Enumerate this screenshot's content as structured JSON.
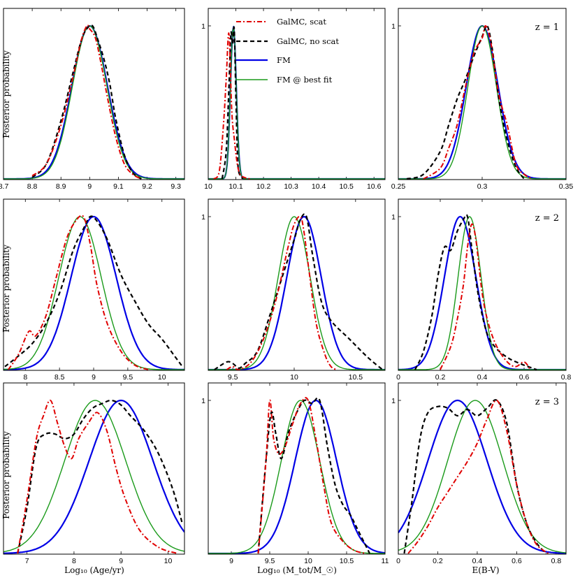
{
  "chart_data": {
    "type": "line",
    "ylabel": "Posterior probability",
    "xlabels": [
      "Log₁₀ (Age/yr)",
      "Log₁₀ (M_tot/M_☉)",
      "E(B-V)"
    ],
    "row_labels": [
      "z = 1",
      "z = 2",
      "z = 3"
    ],
    "peak_label": "1",
    "colors": {
      "galmc_scat": "#e00000",
      "galmc_noscat": "#000000",
      "fm": "#0000e6",
      "fm_best": "#1a9a1a"
    },
    "legend": [
      {
        "key": "galmc_scat",
        "label": "GalMC, scat",
        "style": "dashdot"
      },
      {
        "key": "galmc_noscat",
        "label": "GalMC, no scat",
        "style": "dashed"
      },
      {
        "key": "fm",
        "label": "FM",
        "style": "solid-thick"
      },
      {
        "key": "fm_best",
        "label": "FM @ best fit",
        "style": "solid"
      }
    ],
    "panels": [
      {
        "row": 0,
        "col": 0,
        "xlim": [
          8.7,
          9.33
        ],
        "xticks": [
          8.7,
          8.8,
          8.9,
          9.0,
          9.1,
          9.2,
          9.3
        ],
        "xticklabels": [
          "8.7",
          "8.8",
          "8.9",
          "9",
          "9.1",
          "9.2",
          "9.3"
        ],
        "show_one": false,
        "curves": {
          "galmc_scat": {
            "x": [
              8.8,
              8.85,
              8.9,
              8.94,
              8.97,
              8.99,
              9.0,
              9.02,
              9.04,
              9.06,
              9.09,
              9.12,
              9.15,
              9.18
            ],
            "y": [
              0.02,
              0.1,
              0.35,
              0.65,
              0.9,
              1.0,
              0.98,
              0.92,
              0.75,
              0.55,
              0.28,
              0.1,
              0.03,
              0.0
            ]
          },
          "galmc_noscat": {
            "x": [
              8.8,
              8.85,
              8.9,
              8.94,
              8.97,
              8.99,
              9.01,
              9.03,
              9.05,
              9.07,
              9.09,
              9.12,
              9.15,
              9.18
            ],
            "y": [
              0.01,
              0.1,
              0.38,
              0.68,
              0.9,
              0.98,
              1.0,
              0.9,
              0.78,
              0.62,
              0.4,
              0.16,
              0.04,
              0.0
            ]
          },
          "fm": {
            "gauss": [
              9.0,
              0.062
            ]
          },
          "fm_best": {
            "gauss": [
              9.0,
              0.06
            ]
          }
        }
      },
      {
        "row": 0,
        "col": 1,
        "xlim": [
          10.0,
          10.64
        ],
        "xticks": [
          10.0,
          10.1,
          10.2,
          10.3,
          10.4,
          10.5,
          10.6
        ],
        "xticklabels": [
          "10",
          "10.1",
          "10.2",
          "10.3",
          "10.4",
          "10.5",
          "10.6"
        ],
        "show_one": true,
        "curves": {
          "galmc_scat": {
            "x": [
              10.02,
              10.04,
              10.055,
              10.065,
              10.075,
              10.085,
              10.095,
              10.105,
              10.115,
              10.13,
              10.15
            ],
            "y": [
              0.0,
              0.05,
              0.35,
              0.65,
              0.95,
              0.45,
              0.25,
              0.1,
              0.03,
              0.01,
              0.0
            ]
          },
          "galmc_noscat": {
            "x": [
              10.05,
              10.065,
              10.075,
              10.082,
              10.088,
              10.094,
              10.1,
              10.105,
              10.11,
              10.125
            ],
            "y": [
              0.0,
              0.18,
              0.6,
              0.95,
              0.88,
              0.98,
              0.55,
              0.2,
              0.05,
              0.0
            ]
          },
          "fm": {
            "gauss": [
              10.091,
              0.0105
            ]
          },
          "fm_best": {
            "gauss": [
              10.091,
              0.0105
            ]
          }
        }
      },
      {
        "row": 0,
        "col": 2,
        "xlim": [
          0.25,
          0.35
        ],
        "xticks": [
          0.25,
          0.3,
          0.35
        ],
        "xticklabels": [
          "0.25",
          "0.3",
          "0.35"
        ],
        "show_one": true,
        "zlabel": 0,
        "curves": {
          "galmc_scat": {
            "x": [
              0.265,
              0.275,
              0.28,
              0.285,
              0.29,
              0.295,
              0.3,
              0.302,
              0.305,
              0.31,
              0.315,
              0.32,
              0.325,
              0.33
            ],
            "y": [
              0.0,
              0.07,
              0.2,
              0.35,
              0.6,
              0.82,
              0.92,
              1.0,
              0.9,
              0.55,
              0.35,
              0.1,
              0.03,
              0.0
            ]
          },
          "galmc_noscat": {
            "x": [
              0.255,
              0.265,
              0.275,
              0.28,
              0.285,
              0.29,
              0.295,
              0.3,
              0.303,
              0.306,
              0.31,
              0.315,
              0.32,
              0.325
            ],
            "y": [
              0.0,
              0.03,
              0.18,
              0.35,
              0.52,
              0.65,
              0.8,
              0.93,
              1.0,
              0.85,
              0.52,
              0.25,
              0.08,
              0.0
            ]
          },
          "fm": {
            "gauss": [
              0.3,
              0.0095
            ]
          },
          "fm_best": {
            "gauss": [
              0.3,
              0.0085
            ]
          }
        }
      },
      {
        "row": 1,
        "col": 0,
        "xlim": [
          7.68,
          10.33
        ],
        "xticks": [
          8.0,
          8.5,
          9.0,
          9.5,
          10.0
        ],
        "xticklabels": [
          "8",
          "8.5",
          "9",
          "9.5",
          "10"
        ],
        "show_one": false,
        "curves": {
          "galmc_scat": {
            "x": [
              7.75,
              7.9,
              8.05,
              8.15,
              8.3,
              8.45,
              8.6,
              8.72,
              8.85,
              8.95,
              9.05,
              9.2,
              9.4,
              9.6,
              9.8
            ],
            "y": [
              0.0,
              0.1,
              0.25,
              0.22,
              0.35,
              0.6,
              0.85,
              0.96,
              1.0,
              0.82,
              0.55,
              0.3,
              0.12,
              0.03,
              0.0
            ]
          },
          "galmc_noscat": {
            "x": [
              7.7,
              7.9,
              8.1,
              8.3,
              8.5,
              8.7,
              8.85,
              8.95,
              9.05,
              9.2,
              9.4,
              9.6,
              9.8,
              10.0,
              10.2,
              10.3
            ],
            "y": [
              0.02,
              0.09,
              0.17,
              0.3,
              0.5,
              0.78,
              0.92,
              1.0,
              0.97,
              0.85,
              0.62,
              0.45,
              0.3,
              0.2,
              0.08,
              0.02
            ]
          },
          "fm": {
            "gauss": [
              9.0,
              0.33
            ]
          },
          "fm_best": {
            "gauss": [
              8.8,
              0.31
            ]
          }
        }
      },
      {
        "row": 1,
        "col": 1,
        "xlim": [
          9.3,
          10.74
        ],
        "xticks": [
          9.5,
          10.0,
          10.5
        ],
        "xticklabels": [
          "9.5",
          "10",
          "10.5"
        ],
        "show_one": true,
        "curves": {
          "galmc_scat": {
            "x": [
              9.45,
              9.5,
              9.55,
              9.65,
              9.75,
              9.85,
              9.95,
              10.0,
              10.05,
              10.08,
              10.12,
              10.18,
              10.25,
              10.3,
              10.35
            ],
            "y": [
              0.0,
              0.02,
              0.0,
              0.05,
              0.2,
              0.45,
              0.8,
              0.95,
              1.0,
              0.9,
              0.65,
              0.3,
              0.1,
              0.02,
              0.0
            ]
          },
          "galmc_noscat": {
            "x": [
              9.35,
              9.45,
              9.5,
              9.55,
              9.6,
              9.7,
              9.8,
              9.9,
              10.0,
              10.05,
              10.1,
              10.15,
              10.22,
              10.3,
              10.45,
              10.6,
              10.72
            ],
            "y": [
              0.0,
              0.05,
              0.04,
              0.01,
              0.04,
              0.12,
              0.35,
              0.6,
              0.85,
              0.98,
              1.0,
              0.75,
              0.45,
              0.32,
              0.2,
              0.08,
              0.0
            ]
          },
          "fm": {
            "gauss": [
              10.08,
              0.14
            ]
          },
          "fm_best": {
            "gauss": [
              10.0,
              0.13
            ]
          }
        }
      },
      {
        "row": 1,
        "col": 2,
        "xlim": [
          0.0,
          0.8
        ],
        "xticks": [
          0.0,
          0.2,
          0.4,
          0.6,
          0.8
        ],
        "xticklabels": [
          "0",
          "0.2",
          "0.4",
          "0.6",
          "0.8"
        ],
        "show_one": true,
        "zlabel": 1,
        "curves": {
          "galmc_scat": {
            "x": [
              0.2,
              0.25,
              0.28,
              0.31,
              0.33,
              0.35,
              0.37,
              0.4,
              0.43,
              0.47,
              0.52,
              0.56,
              0.6,
              0.63
            ],
            "y": [
              0.0,
              0.15,
              0.32,
              0.55,
              0.8,
              0.95,
              0.85,
              0.5,
              0.3,
              0.15,
              0.05,
              0.02,
              0.05,
              0.0
            ]
          },
          "galmc_noscat": {
            "x": [
              0.08,
              0.12,
              0.16,
              0.19,
              0.22,
              0.25,
              0.28,
              0.31,
              0.33,
              0.35,
              0.38,
              0.42,
              0.46,
              0.52,
              0.58,
              0.66
            ],
            "y": [
              0.0,
              0.12,
              0.35,
              0.62,
              0.8,
              0.78,
              0.9,
              0.98,
              1.0,
              0.8,
              0.5,
              0.25,
              0.15,
              0.08,
              0.04,
              0.0
            ]
          },
          "fm": {
            "gauss": [
              0.295,
              0.075
            ]
          },
          "fm_best": {
            "gauss": [
              0.34,
              0.055
            ]
          }
        }
      },
      {
        "row": 2,
        "col": 0,
        "xlim": [
          6.5,
          10.35
        ],
        "xticks": [
          7,
          8,
          9,
          10
        ],
        "xticklabels": [
          "7",
          "8",
          "9",
          "10"
        ],
        "show_one": false,
        "curves": {
          "galmc_scat": {
            "x": [
              6.8,
              7.0,
              7.2,
              7.35,
              7.5,
              7.65,
              7.8,
              7.95,
              8.1,
              8.3,
              8.5,
              8.7,
              8.9,
              9.1,
              9.4,
              9.8,
              10.2
            ],
            "y": [
              0.0,
              0.35,
              0.75,
              0.9,
              1.0,
              0.85,
              0.7,
              0.62,
              0.75,
              0.85,
              0.92,
              0.8,
              0.55,
              0.35,
              0.15,
              0.04,
              0.0
            ]
          },
          "galmc_noscat": {
            "x": [
              6.8,
              7.0,
              7.2,
              7.4,
              7.6,
              7.8,
              8.0,
              8.2,
              8.4,
              8.6,
              8.8,
              9.0,
              9.2,
              9.5,
              9.8,
              10.1,
              10.3
            ],
            "y": [
              0.0,
              0.3,
              0.7,
              0.78,
              0.78,
              0.75,
              0.78,
              0.88,
              0.95,
              0.98,
              1.0,
              0.97,
              0.9,
              0.8,
              0.65,
              0.42,
              0.2
            ]
          },
          "fm": {
            "gauss": [
              9.0,
              0.68
            ]
          },
          "fm_best": {
            "gauss": [
              8.45,
              0.65
            ]
          }
        }
      },
      {
        "row": 2,
        "col": 1,
        "xlim": [
          8.7,
          11.0
        ],
        "xticks": [
          9.0,
          9.5,
          10.0,
          10.5,
          11.0
        ],
        "xticklabels": [
          "9",
          "9.5",
          "10",
          "10.5",
          "11"
        ],
        "show_one": true,
        "curves": {
          "galmc_scat": {
            "x": [
              9.35,
              9.45,
              9.5,
              9.55,
              9.62,
              9.7,
              9.8,
              9.9,
              10.0,
              10.1,
              10.2,
              10.3,
              10.45,
              10.6,
              10.75
            ],
            "y": [
              0.0,
              0.6,
              1.0,
              0.75,
              0.65,
              0.7,
              0.85,
              0.98,
              1.0,
              0.75,
              0.45,
              0.2,
              0.08,
              0.02,
              0.0
            ]
          },
          "galmc_noscat": {
            "x": [
              9.35,
              9.45,
              9.52,
              9.58,
              9.65,
              9.75,
              9.85,
              9.95,
              10.05,
              10.15,
              10.25,
              10.35,
              10.45,
              10.55,
              10.65,
              10.8
            ],
            "y": [
              0.0,
              0.6,
              0.92,
              0.78,
              0.62,
              0.8,
              0.92,
              1.0,
              0.98,
              1.0,
              0.7,
              0.45,
              0.32,
              0.25,
              0.15,
              0.0
            ]
          },
          "fm": {
            "gauss": [
              10.1,
              0.27
            ]
          },
          "fm_best": {
            "gauss": [
              9.9,
              0.25
            ]
          }
        }
      },
      {
        "row": 2,
        "col": 2,
        "xlim": [
          0.0,
          0.85
        ],
        "xticks": [
          0.0,
          0.2,
          0.4,
          0.6,
          0.8
        ],
        "xticklabels": [
          "0",
          "0.2",
          "0.4",
          "0.6",
          "0.8"
        ],
        "show_one": true,
        "zlabel": 2,
        "curves": {
          "galmc_scat": {
            "x": [
              0.05,
              0.1,
              0.15,
              0.2,
              0.25,
              0.3,
              0.35,
              0.4,
              0.45,
              0.5,
              0.55,
              0.6,
              0.65,
              0.7,
              0.76
            ],
            "y": [
              0.0,
              0.08,
              0.18,
              0.3,
              0.4,
              0.5,
              0.6,
              0.72,
              0.88,
              1.0,
              0.8,
              0.45,
              0.2,
              0.06,
              0.0
            ]
          },
          "galmc_noscat": {
            "x": [
              0.03,
              0.07,
              0.11,
              0.15,
              0.2,
              0.25,
              0.3,
              0.35,
              0.4,
              0.45,
              0.5,
              0.55,
              0.6,
              0.65,
              0.7,
              0.75
            ],
            "y": [
              0.0,
              0.35,
              0.75,
              0.92,
              0.96,
              0.95,
              0.9,
              0.94,
              0.9,
              0.95,
              1.0,
              0.85,
              0.45,
              0.2,
              0.07,
              0.0
            ]
          },
          "fm": {
            "gauss": [
              0.3,
              0.15
            ]
          },
          "fm_best": {
            "gauss": [
              0.39,
              0.14
            ]
          }
        }
      }
    ]
  }
}
